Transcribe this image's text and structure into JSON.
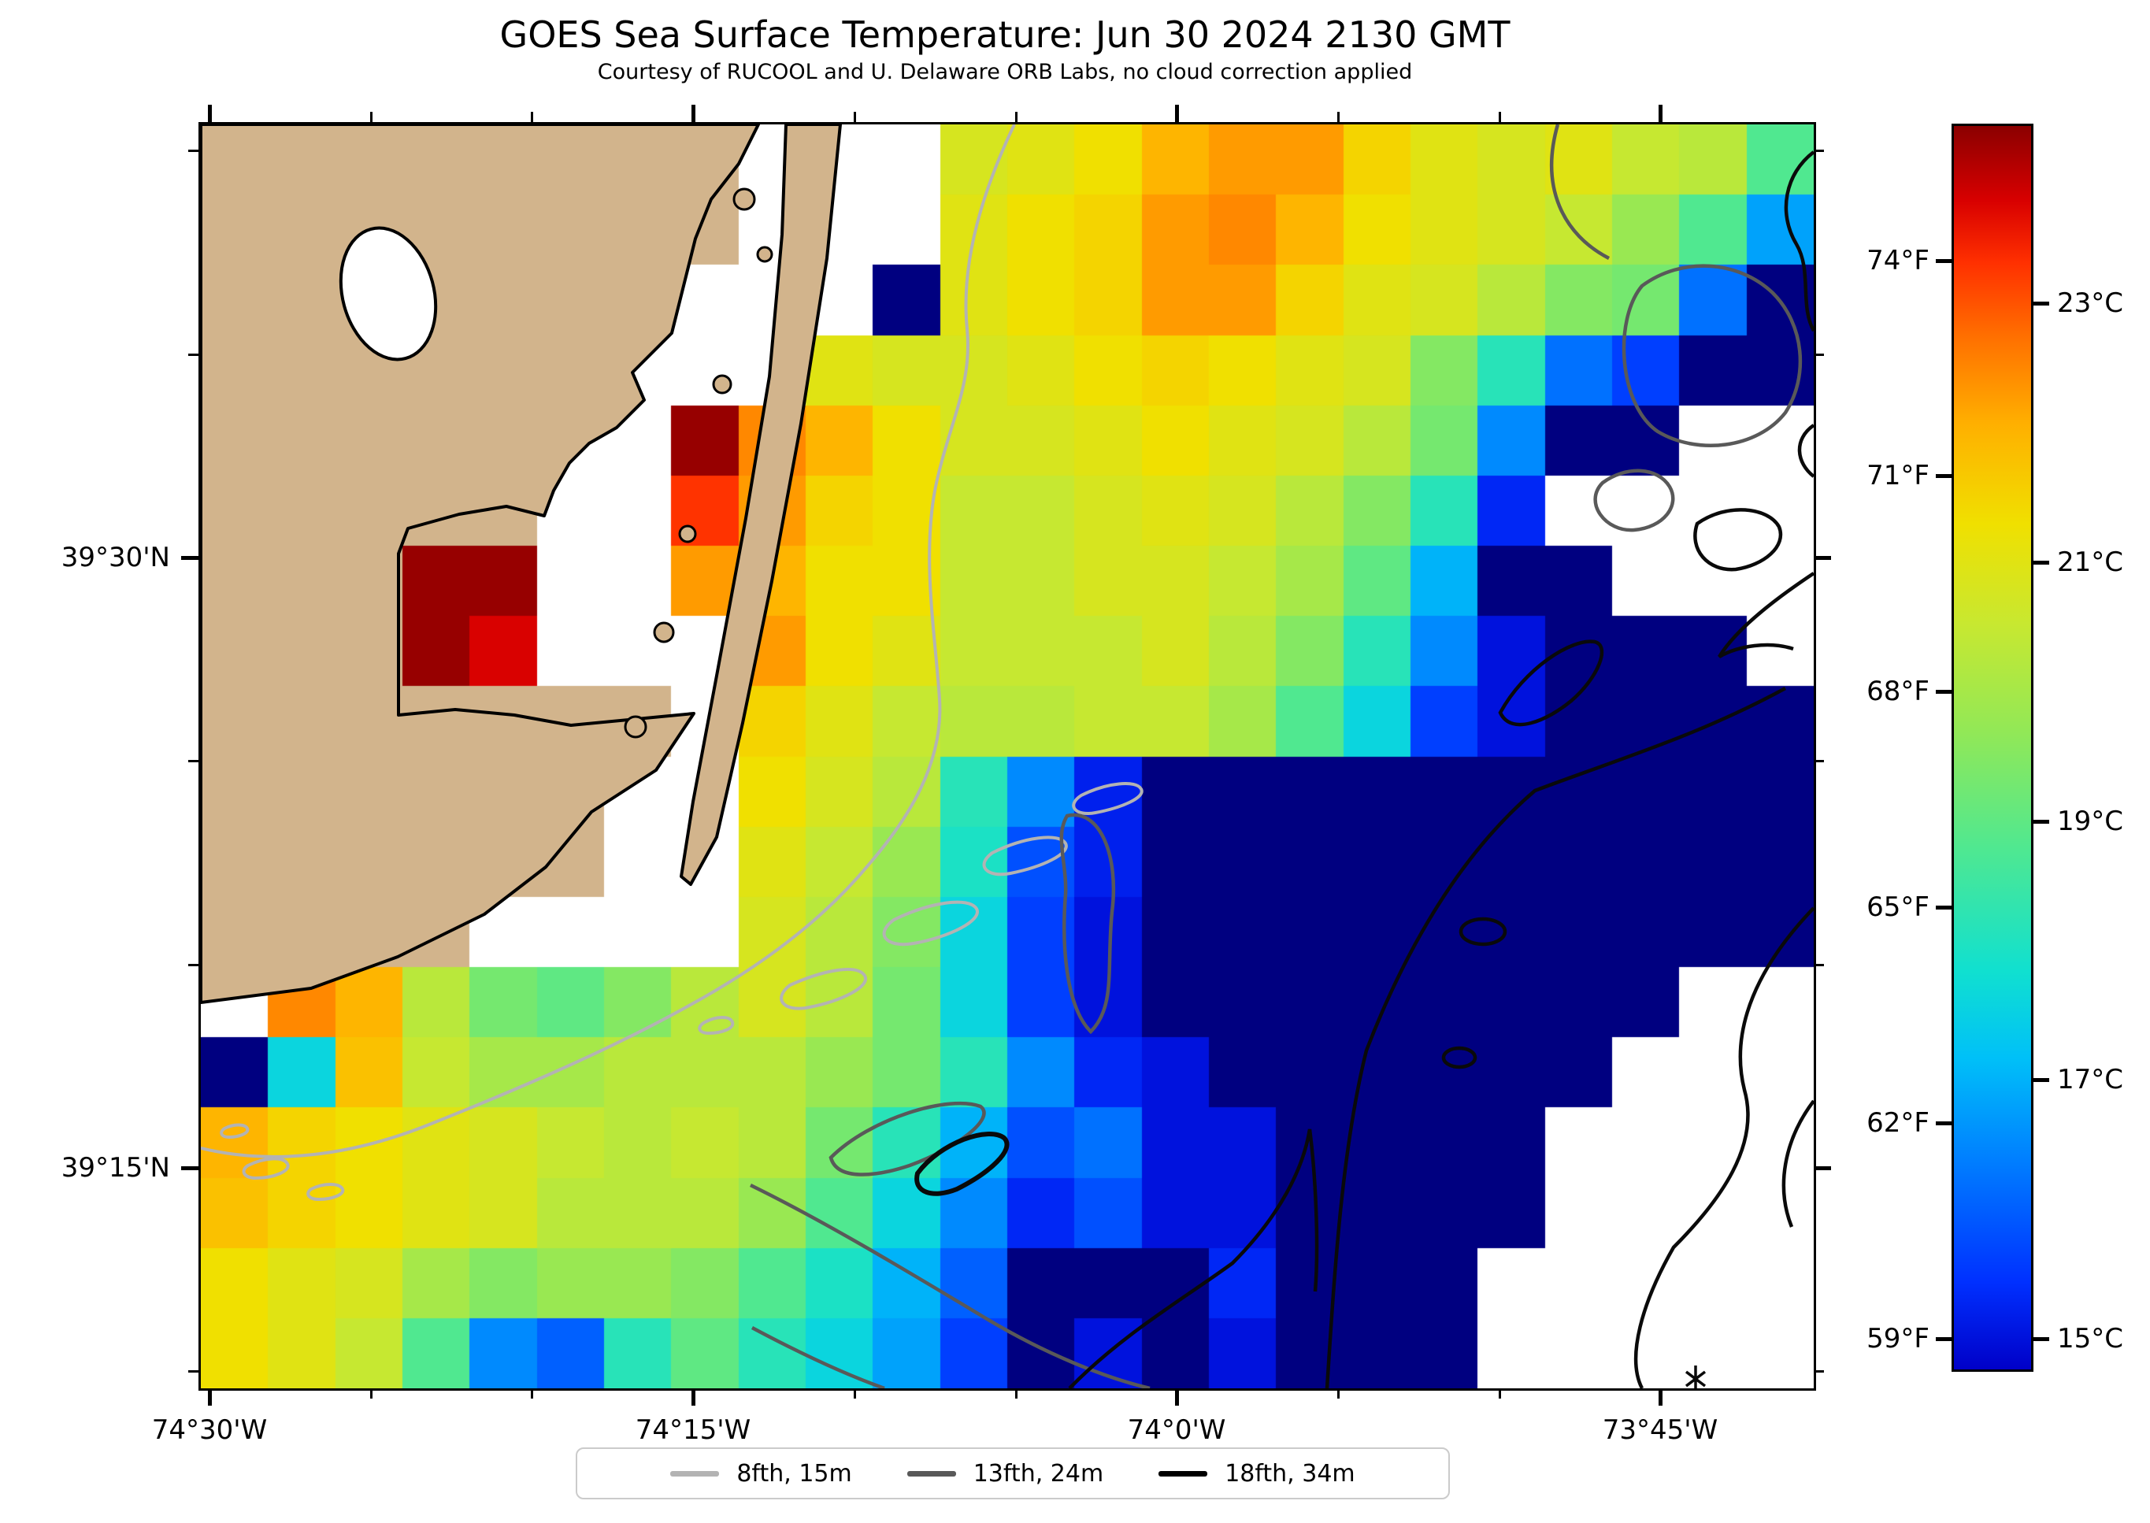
{
  "title": "GOES Sea Surface Temperature: Jun 30 2024 2130 GMT",
  "subtitle": "Courtesy of RUCOOL and U. Delaware ORB Labs, no cloud correction applied",
  "axes": {
    "lat_major": [
      {
        "label": "39°30'N",
        "deg": 39.5
      },
      {
        "label": "39°15'N",
        "deg": 39.25
      }
    ],
    "lat_minor_deg": [
      39.6667,
      39.5833,
      39.4167,
      39.3333,
      39.1667
    ],
    "lon_major": [
      {
        "label": "74°30'W",
        "deg": 74.5
      },
      {
        "label": "74°15'W",
        "deg": 74.25
      },
      {
        "label": "74°0'W",
        "deg": 74.0
      },
      {
        "label": "73°45'W",
        "deg": 73.75
      }
    ],
    "lon_minor_deg": [
      74.4167,
      74.3333,
      74.1667,
      74.0833,
      73.9167,
      73.8333
    ]
  },
  "colorbar": {
    "f_ticks": [
      {
        "label": "74°F",
        "c": 23.333
      },
      {
        "label": "71°F",
        "c": 21.667
      },
      {
        "label": "68°F",
        "c": 20.0
      },
      {
        "label": "65°F",
        "c": 18.333
      },
      {
        "label": "62°F",
        "c": 16.667
      },
      {
        "label": "59°F",
        "c": 15.0
      }
    ],
    "c_ticks": [
      {
        "label": "23°C",
        "c": 23.0
      },
      {
        "label": "21°C",
        "c": 21.0
      },
      {
        "label": "19°C",
        "c": 19.0
      },
      {
        "label": "17°C",
        "c": 17.0
      },
      {
        "label": "15°C",
        "c": 15.0
      }
    ]
  },
  "legend": {
    "items": [
      {
        "label": "8fth, 15m",
        "color": "#b3b3b3"
      },
      {
        "label": "13fth, 24m",
        "color": "#595959"
      },
      {
        "label": "18fth, 34m",
        "color": "#000000"
      }
    ]
  },
  "chart_data": {
    "type": "heatmap",
    "title": "GOES Sea Surface Temperature: Jun 30 2024 2130 GMT",
    "units": "°C",
    "lon_range_w": [
      74.5057,
      73.6719
    ],
    "lat_range_n": [
      39.1606,
      39.6784
    ],
    "value_range_c": [
      14.745,
      24.39
    ],
    "colormap_stops": [
      [
        0.0,
        "#0000c8"
      ],
      [
        0.07,
        "#0030ff"
      ],
      [
        0.17,
        "#0080ff"
      ],
      [
        0.25,
        "#00c0f8"
      ],
      [
        0.32,
        "#10e0d0"
      ],
      [
        0.42,
        "#50e890"
      ],
      [
        0.51,
        "#90e858"
      ],
      [
        0.6,
        "#c8e830"
      ],
      [
        0.68,
        "#f0e000"
      ],
      [
        0.76,
        "#ffb000"
      ],
      [
        0.83,
        "#ff7000"
      ],
      [
        0.89,
        "#ff3000"
      ],
      [
        0.94,
        "#d80000"
      ],
      [
        1.0,
        "#8b0000"
      ]
    ],
    "under_color": "#000080",
    "land_color": "#d2b48c",
    "no_data_color": "#ffffff",
    "cols": 24,
    "rows": 18,
    "land_token": "L",
    "grid_c": [
      [
        "L",
        "L",
        "L",
        "L",
        "L",
        "L",
        "L",
        "L",
        null,
        null,
        null,
        20.8,
        21,
        21.3,
        22,
        22.3,
        22.3,
        21.5,
        21,
        20.8,
        21,
        20.5,
        20.3,
        18.8
      ],
      [
        "L",
        "L",
        "L",
        "L",
        "L",
        "L",
        "L",
        "L",
        null,
        null,
        null,
        21,
        21.3,
        21.5,
        22.3,
        22.5,
        22,
        21.3,
        21,
        20.8,
        20.5,
        19.8,
        18.8,
        16.8
      ],
      [
        "L",
        "L",
        "L",
        "L",
        "L",
        "L",
        "L",
        null,
        null,
        null,
        14.2,
        21,
        21.3,
        21.5,
        22.3,
        22.3,
        21.5,
        21,
        20.8,
        20.3,
        19.5,
        19.3,
        16.2,
        14.2
      ],
      [
        "L",
        "L",
        "L",
        "L",
        "L",
        "L",
        null,
        null,
        null,
        21,
        20.8,
        20.8,
        21,
        21.3,
        21.5,
        21.3,
        21,
        20.8,
        19.5,
        18.2,
        16.2,
        15.6,
        14.2,
        14.2
      ],
      [
        "L",
        "L",
        "L",
        "L",
        "L",
        null,
        null,
        24.3,
        22.5,
        22,
        21.3,
        20.8,
        20.8,
        21,
        21.3,
        21,
        20.8,
        20.3,
        19.3,
        16.5,
        14.2,
        14.2,
        null,
        null
      ],
      [
        "L",
        "L",
        "L",
        "L",
        "L",
        null,
        null,
        23.3,
        22.3,
        21.5,
        21.3,
        20.5,
        20.5,
        20.8,
        21,
        20.8,
        20.3,
        19.5,
        18.2,
        15.3,
        null,
        null,
        null,
        null
      ],
      [
        "L",
        "L",
        "L",
        24.3,
        24.3,
        null,
        null,
        22.3,
        22,
        21.3,
        21.3,
        20.5,
        20.5,
        20.8,
        20.8,
        20.5,
        20,
        19,
        17,
        14.2,
        14.2,
        null,
        null,
        null
      ],
      [
        "L",
        "L",
        "L",
        24.3,
        23.8,
        null,
        null,
        null,
        22.3,
        21.3,
        21,
        20.5,
        20.5,
        20.5,
        20.8,
        20.3,
        19.5,
        18.2,
        16.5,
        15,
        14.2,
        14.2,
        14.2,
        null
      ],
      [
        "L",
        "L",
        "L",
        "L",
        "L",
        "L",
        "L",
        null,
        21.5,
        21,
        20.5,
        20.3,
        20.3,
        20.5,
        20.5,
        20,
        18.8,
        17.6,
        15.6,
        15,
        14.2,
        14.2,
        14.2,
        14.2
      ],
      [
        "L",
        "L",
        "L",
        "L",
        "L",
        "L",
        null,
        null,
        21.3,
        20.8,
        20.3,
        18.2,
        16.5,
        15.2,
        14.2,
        14.2,
        14.2,
        14.2,
        14.2,
        14.2,
        14.2,
        14.2,
        14.2,
        14.2
      ],
      [
        "L",
        "L",
        "L",
        "L",
        "L",
        "L",
        null,
        null,
        21,
        20.5,
        19.8,
        18,
        15.8,
        15.2,
        14.2,
        14.2,
        14.2,
        14.2,
        14.2,
        14.2,
        14.2,
        14.2,
        14.2,
        14.2
      ],
      [
        "L",
        "L",
        "L",
        "L",
        null,
        null,
        null,
        null,
        20.8,
        20.3,
        19.5,
        17.6,
        15.6,
        15,
        14.2,
        14.2,
        14.2,
        14.2,
        14.2,
        14.2,
        14.2,
        14.2,
        14.2,
        14.2
      ],
      [
        null,
        22.5,
        22,
        20.3,
        19.3,
        19,
        19.5,
        20.3,
        20.8,
        20.3,
        19.3,
        17.6,
        15.6,
        15,
        14.2,
        14.2,
        14.2,
        14.2,
        14.2,
        14.2,
        14.2,
        14.2,
        null,
        null
      ],
      [
        14.2,
        17.6,
        21.8,
        20.5,
        20,
        20,
        20.3,
        20.3,
        20.3,
        19.8,
        19.3,
        18.2,
        16.5,
        15.3,
        15,
        14.2,
        14.2,
        14.2,
        14.2,
        14.2,
        14.2,
        null,
        null,
        null
      ],
      [
        22,
        21.5,
        21.3,
        21,
        20.8,
        20.5,
        20.3,
        20.5,
        20.3,
        19.3,
        18.2,
        17,
        15.8,
        16.2,
        15,
        15,
        14.2,
        14.2,
        14.2,
        14.2,
        null,
        null,
        null,
        null
      ],
      [
        21.8,
        21.5,
        21.3,
        21,
        20.8,
        20.3,
        20.3,
        20.3,
        19.8,
        18.8,
        17.6,
        16.5,
        15.3,
        15.8,
        15,
        15,
        14.2,
        14.2,
        14.2,
        14.2,
        null,
        null,
        null,
        null
      ],
      [
        21.3,
        21,
        20.8,
        20,
        19.5,
        19.8,
        19.8,
        19.5,
        18.8,
        18,
        17,
        16,
        14.2,
        14.2,
        14.2,
        15.3,
        14.2,
        14.2,
        14.2,
        null,
        null,
        null,
        null,
        null
      ],
      [
        21.3,
        21,
        20.5,
        18.8,
        16.5,
        16,
        18.2,
        19,
        18.2,
        17.6,
        16.8,
        15.6,
        14.2,
        15,
        14.2,
        15,
        14.2,
        14.2,
        14.2,
        null,
        null,
        null,
        null,
        null
      ]
    ],
    "contours": [
      {
        "name": "8fth, 15m",
        "depth_m": 15,
        "color": "#b3b3b3"
      },
      {
        "name": "13fth, 24m",
        "depth_m": 24,
        "color": "#595959"
      },
      {
        "name": "18fth, 34m",
        "depth_m": 34,
        "color": "#000000"
      }
    ]
  }
}
